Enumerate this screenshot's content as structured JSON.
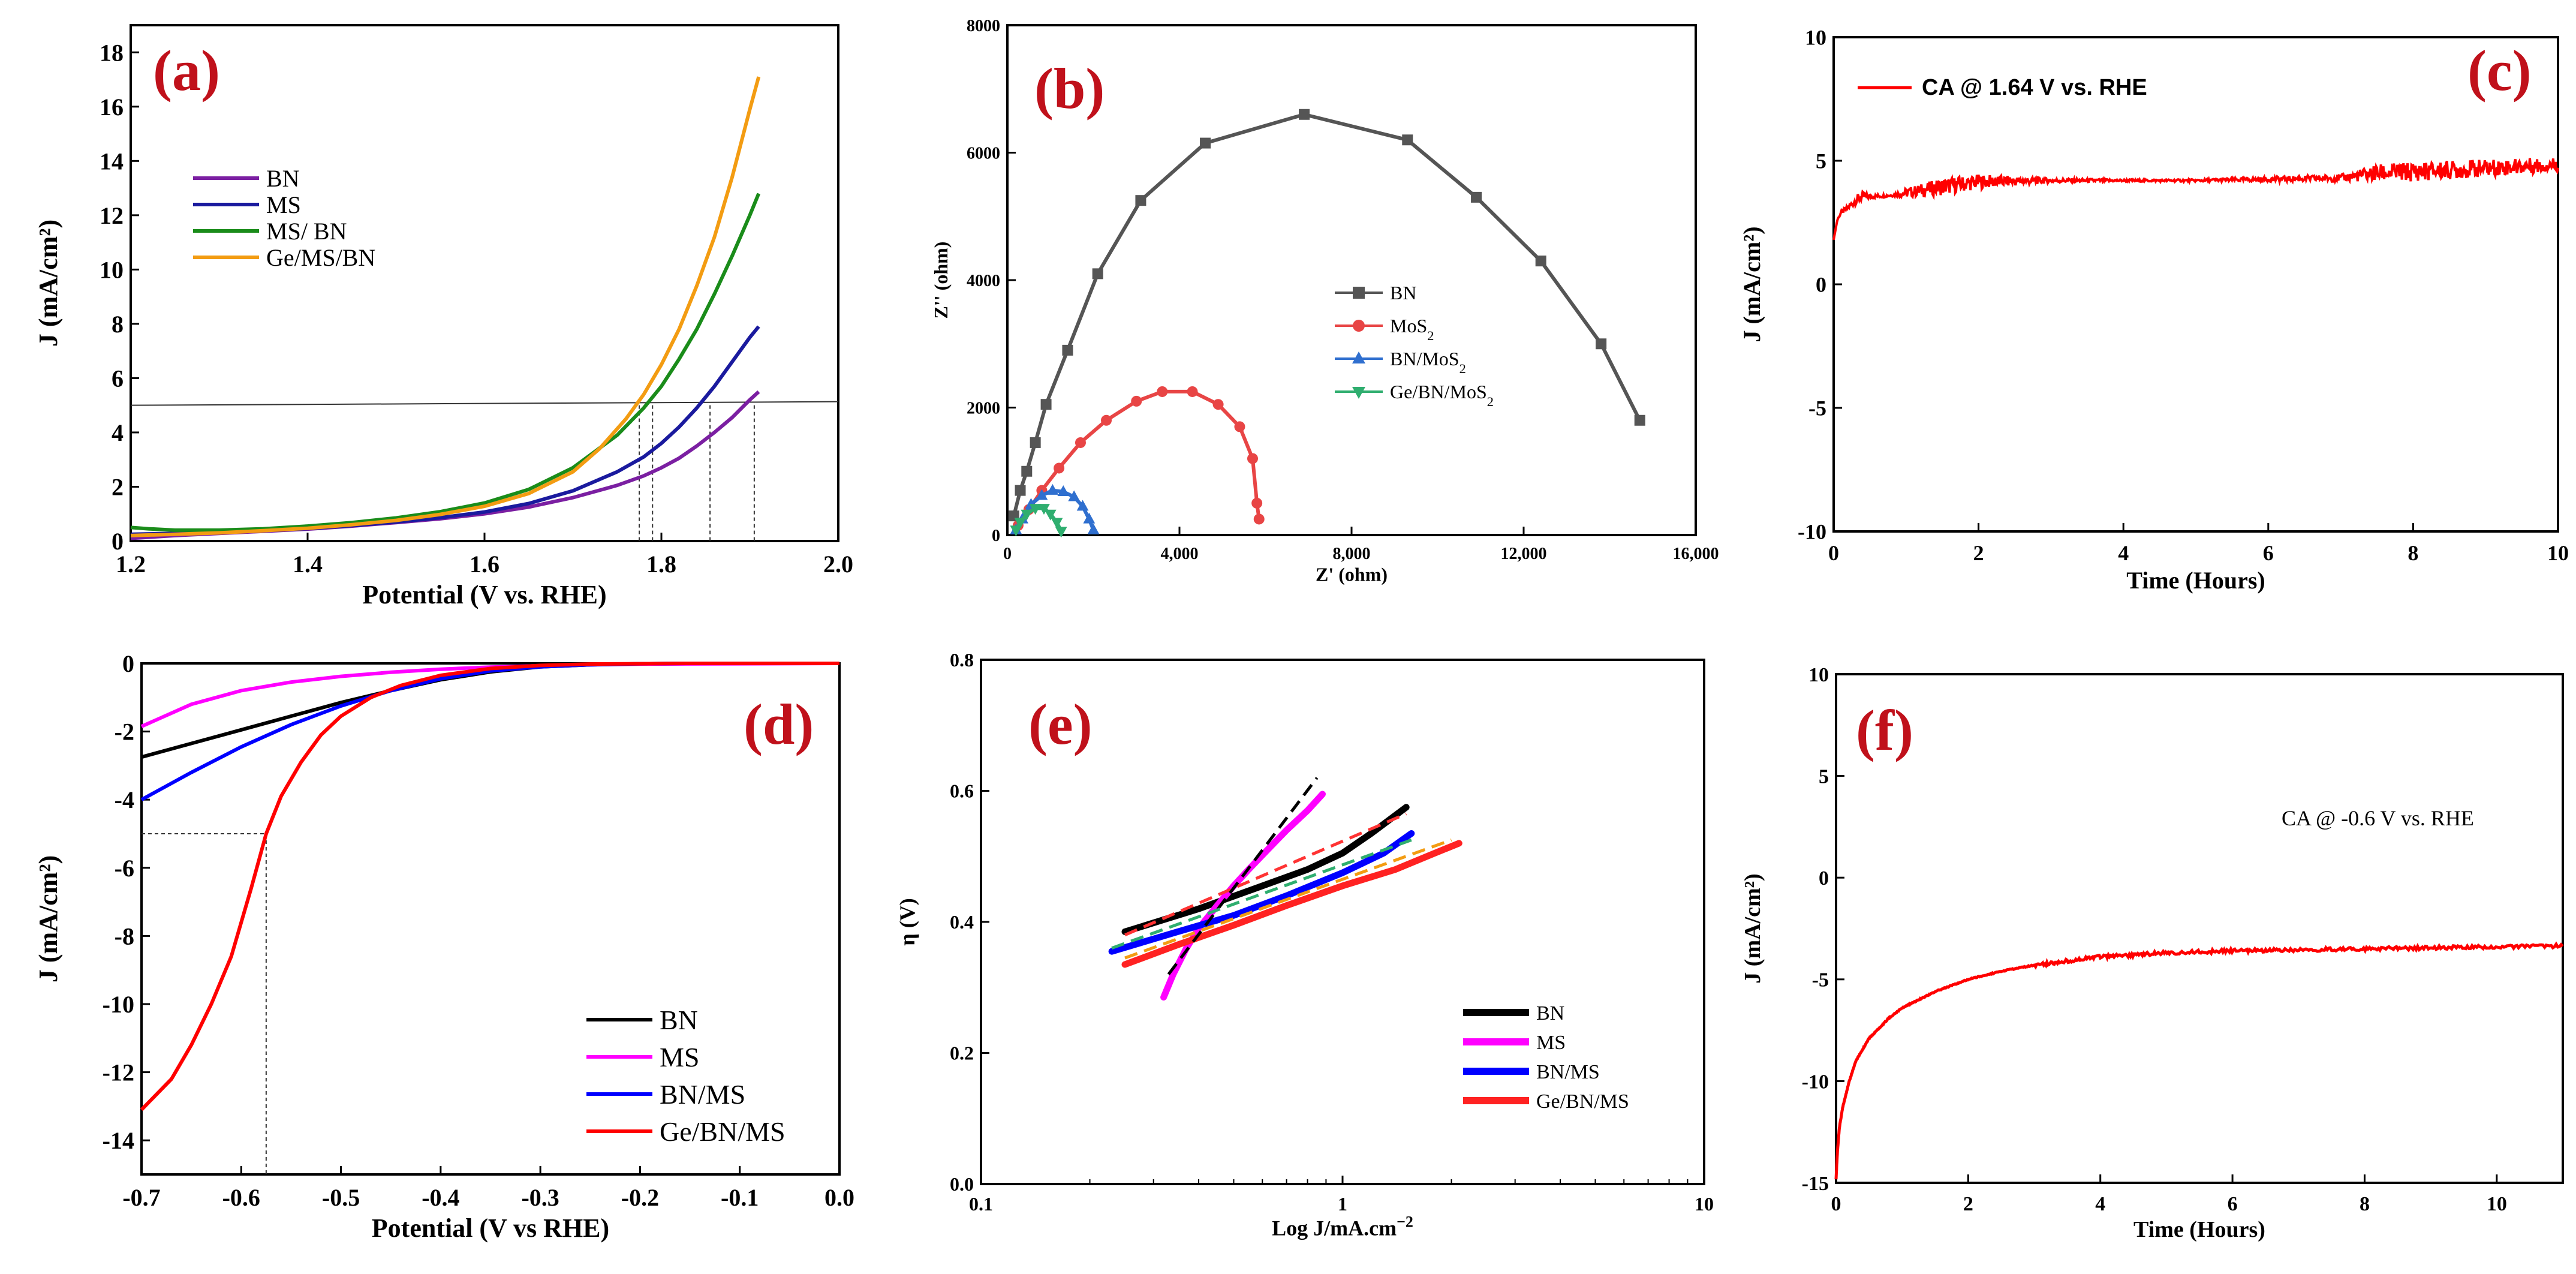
{
  "figure": {
    "panels": [
      "a",
      "b",
      "c",
      "d",
      "e",
      "f"
    ]
  },
  "chart_data": [
    {
      "id": "a",
      "type": "line",
      "panel_label": "(a)",
      "xlabel": "Potential (V vs. RHE)",
      "ylabel": "J (mA/cm²)",
      "xlim": [
        1.2,
        2.0
      ],
      "ylim": [
        0,
        19
      ],
      "xticks": [
        1.2,
        1.4,
        1.6,
        1.8,
        2.0
      ],
      "xtick_labels": [
        "1.2",
        "1.4",
        "1.6",
        "1.8",
        "2.0"
      ],
      "yticks": [
        0,
        2,
        4,
        6,
        8,
        10,
        12,
        14,
        16,
        18
      ],
      "ytick_labels": [
        "0",
        "2",
        "4",
        "6",
        "8",
        "10",
        "12",
        "14",
        "16",
        "18"
      ],
      "legend_position": "upper-left",
      "reference_line": {
        "y": 5
      },
      "drop_lines_x": [
        1.775,
        1.79,
        1.855,
        1.905
      ],
      "series": [
        {
          "name": "BN",
          "color": "#7b1fa2",
          "x": [
            1.2,
            1.25,
            1.3,
            1.35,
            1.4,
            1.45,
            1.5,
            1.55,
            1.6,
            1.65,
            1.7,
            1.75,
            1.78,
            1.8,
            1.82,
            1.84,
            1.86,
            1.88,
            1.9,
            1.91
          ],
          "y": [
            0.1,
            0.2,
            0.28,
            0.36,
            0.44,
            0.55,
            0.68,
            0.82,
            1.0,
            1.25,
            1.6,
            2.05,
            2.4,
            2.7,
            3.05,
            3.5,
            4.0,
            4.55,
            5.2,
            5.5
          ]
        },
        {
          "name": "MS",
          "color": "#1a1a9e",
          "x": [
            1.2,
            1.25,
            1.3,
            1.35,
            1.4,
            1.45,
            1.5,
            1.55,
            1.6,
            1.65,
            1.7,
            1.75,
            1.78,
            1.8,
            1.82,
            1.84,
            1.86,
            1.88,
            1.9,
            1.91
          ],
          "y": [
            0.25,
            0.28,
            0.32,
            0.38,
            0.46,
            0.57,
            0.7,
            0.86,
            1.07,
            1.38,
            1.85,
            2.55,
            3.1,
            3.6,
            4.2,
            4.9,
            5.7,
            6.6,
            7.5,
            7.9
          ]
        },
        {
          "name": "MS/ BN",
          "color": "#1a8c1a",
          "x": [
            1.2,
            1.22,
            1.25,
            1.3,
            1.35,
            1.4,
            1.45,
            1.5,
            1.55,
            1.6,
            1.65,
            1.7,
            1.75,
            1.78,
            1.8,
            1.82,
            1.84,
            1.86,
            1.88,
            1.9,
            1.91
          ],
          "y": [
            0.5,
            0.45,
            0.4,
            0.4,
            0.45,
            0.55,
            0.68,
            0.85,
            1.08,
            1.4,
            1.9,
            2.7,
            3.9,
            4.9,
            5.7,
            6.7,
            7.8,
            9.1,
            10.5,
            12.0,
            12.8
          ]
        },
        {
          "name": "Ge/MS/BN",
          "color": "#f39c12",
          "x": [
            1.2,
            1.25,
            1.3,
            1.35,
            1.4,
            1.45,
            1.5,
            1.55,
            1.6,
            1.65,
            1.7,
            1.73,
            1.76,
            1.78,
            1.8,
            1.82,
            1.84,
            1.86,
            1.88,
            1.9,
            1.91
          ],
          "y": [
            0.2,
            0.25,
            0.3,
            0.38,
            0.47,
            0.6,
            0.76,
            0.98,
            1.28,
            1.75,
            2.55,
            3.4,
            4.5,
            5.4,
            6.5,
            7.8,
            9.4,
            11.2,
            13.4,
            15.9,
            17.1
          ]
        }
      ]
    },
    {
      "id": "b",
      "type": "scatter",
      "panel_label": "(b)",
      "xlabel": "Z' (ohm)",
      "ylabel": "Z'' (ohm)",
      "xlim": [
        0,
        16000
      ],
      "ylim": [
        0,
        8000
      ],
      "xticks": [
        0,
        4000,
        8000,
        12000,
        16000
      ],
      "xtick_labels": [
        "0",
        "4,000",
        "8,000",
        "12,000",
        "16,000"
      ],
      "yticks": [
        0,
        2000,
        4000,
        6000,
        8000
      ],
      "ytick_labels": [
        "0",
        "2000",
        "4000",
        "6000",
        "8000"
      ],
      "legend_position": "center",
      "series": [
        {
          "name": "BN",
          "color": "#555555",
          "marker": "square",
          "x": [
            150,
            300,
            450,
            650,
            900,
            1400,
            2100,
            3100,
            4600,
            6900,
            9300,
            10900,
            12400,
            13800,
            14700
          ],
          "y": [
            300,
            700,
            1000,
            1450,
            2050,
            2900,
            4100,
            5250,
            6150,
            6600,
            6200,
            5300,
            4300,
            3000,
            1800
          ]
        },
        {
          "name": "MoS",
          "sub": "2",
          "color": "#e84545",
          "marker": "circle",
          "x": [
            250,
            500,
            800,
            1200,
            1700,
            2300,
            3000,
            3600,
            4300,
            4900,
            5400,
            5700,
            5800,
            5850
          ],
          "y": [
            150,
            400,
            700,
            1050,
            1450,
            1800,
            2100,
            2250,
            2250,
            2050,
            1700,
            1200,
            500,
            250
          ]
        },
        {
          "name": "BN/MoS",
          "sub": "2",
          "color": "#2f6fcf",
          "marker": "triangle",
          "x": [
            200,
            350,
            550,
            800,
            1050,
            1300,
            1550,
            1750,
            1900,
            2000
          ],
          "y": [
            80,
            250,
            480,
            620,
            700,
            680,
            600,
            450,
            250,
            80
          ]
        },
        {
          "name": "Ge/BN/MoS",
          "sub": "2",
          "color": "#2fae6f",
          "marker": "tri-down",
          "x": [
            200,
            300,
            450,
            650,
            850,
            1000,
            1150,
            1250
          ],
          "y": [
            80,
            200,
            330,
            420,
            420,
            330,
            200,
            60
          ]
        }
      ]
    },
    {
      "id": "c",
      "type": "line",
      "panel_label": "(c)",
      "xlabel": "Time (Hours)",
      "ylabel": "J (mA/cm²)",
      "xlim": [
        0,
        10
      ],
      "ylim": [
        -10,
        10
      ],
      "xticks": [
        0,
        2,
        4,
        6,
        8,
        10
      ],
      "xtick_labels": [
        "0",
        "2",
        "4",
        "6",
        "8",
        "10"
      ],
      "yticks": [
        -10,
        -5,
        0,
        5,
        10
      ],
      "ytick_labels": [
        "-10",
        "-5",
        "0",
        "5",
        "10"
      ],
      "legend_position": "top-left",
      "series": [
        {
          "name": "CA @ 1.64 V vs. RHE",
          "color": "#ff0000",
          "x": [
            0,
            0.05,
            0.1,
            0.2,
            0.3,
            0.4,
            0.5,
            0.8,
            1.0,
            1.5,
            2.0,
            3.0,
            4.0,
            5.0,
            6.0,
            7.0,
            7.5,
            8.0,
            9.0,
            10.0
          ],
          "y": [
            1.8,
            2.6,
            2.9,
            3.1,
            3.4,
            3.55,
            3.55,
            3.6,
            3.7,
            3.95,
            4.15,
            4.2,
            4.2,
            4.2,
            4.25,
            4.3,
            4.5,
            4.55,
            4.7,
            4.85
          ],
          "noise": [
            0,
            0,
            0.1,
            0.1,
            0.2,
            0.2,
            0.1,
            0.05,
            0.2,
            0.35,
            0.3,
            0.1,
            0.05,
            0.05,
            0.1,
            0.15,
            0.35,
            0.4,
            0.35,
            0.3
          ]
        }
      ]
    },
    {
      "id": "d",
      "type": "line",
      "panel_label": "(d)",
      "xlabel": "Potential (V vs RHE)",
      "ylabel": "J (mA/cm²)",
      "xlim": [
        -0.7,
        0.0
      ],
      "ylim": [
        -15,
        0
      ],
      "xticks": [
        -0.7,
        -0.6,
        -0.5,
        -0.4,
        -0.3,
        -0.2,
        -0.1,
        0.0
      ],
      "xtick_labels": [
        "-0.7",
        "-0.6",
        "-0.5",
        "-0.4",
        "-0.3",
        "-0.2",
        "-0.1",
        "0.0"
      ],
      "yticks": [
        0,
        -2,
        -4,
        -6,
        -8,
        -10,
        -12,
        -14
      ],
      "ytick_labels": [
        "0",
        "-2",
        "-4",
        "-6",
        "-8",
        "-10",
        "-12",
        "-14"
      ],
      "legend_position": "lower-right",
      "reference_point": {
        "x": -0.575,
        "y": -5
      },
      "series": [
        {
          "name": "BN",
          "color": "#000000",
          "x": [
            -0.7,
            -0.65,
            -0.6,
            -0.55,
            -0.5,
            -0.45,
            -0.4,
            -0.35,
            -0.3,
            -0.25,
            -0.2,
            -0.15,
            -0.1,
            0.0
          ],
          "y": [
            -2.75,
            -2.35,
            -1.95,
            -1.55,
            -1.15,
            -0.8,
            -0.48,
            -0.25,
            -0.1,
            -0.04,
            -0.01,
            0.0,
            0.0,
            0.0
          ]
        },
        {
          "name": "MS",
          "color": "#ff00ff",
          "x": [
            -0.7,
            -0.65,
            -0.6,
            -0.55,
            -0.5,
            -0.45,
            -0.4,
            -0.35,
            -0.3,
            -0.25,
            -0.2,
            -0.1,
            0.0
          ],
          "y": [
            -1.85,
            -1.2,
            -0.8,
            -0.55,
            -0.38,
            -0.26,
            -0.17,
            -0.11,
            -0.07,
            -0.04,
            -0.02,
            -0.01,
            0.0
          ]
        },
        {
          "name": "BN/MS",
          "color": "#0000ff",
          "x": [
            -0.7,
            -0.65,
            -0.6,
            -0.55,
            -0.5,
            -0.45,
            -0.4,
            -0.35,
            -0.3,
            -0.25,
            -0.2,
            -0.15,
            -0.1,
            0.0
          ],
          "y": [
            -4.0,
            -3.2,
            -2.45,
            -1.8,
            -1.25,
            -0.8,
            -0.45,
            -0.22,
            -0.1,
            -0.04,
            -0.01,
            0.0,
            0.0,
            0.0
          ]
        },
        {
          "name": "Ge/BN/MS",
          "color": "#ff0000",
          "x": [
            -0.7,
            -0.67,
            -0.65,
            -0.63,
            -0.61,
            -0.59,
            -0.575,
            -0.56,
            -0.54,
            -0.52,
            -0.5,
            -0.47,
            -0.44,
            -0.4,
            -0.35,
            -0.3,
            -0.25,
            -0.2,
            -0.15,
            -0.1,
            0.0
          ],
          "y": [
            -13.1,
            -12.2,
            -11.2,
            -10.0,
            -8.6,
            -6.6,
            -5.0,
            -3.9,
            -2.9,
            -2.1,
            -1.55,
            -1.0,
            -0.65,
            -0.35,
            -0.15,
            -0.06,
            -0.02,
            -0.01,
            0.0,
            0.0,
            0.0
          ]
        }
      ]
    },
    {
      "id": "e",
      "type": "line",
      "scale_x": "log",
      "panel_label": "(e)",
      "xlabel": "Log J/mA.cm",
      "xlabel_sup": "−2",
      "ylabel": "η (V)",
      "xlim": [
        0.1,
        10
      ],
      "ylim": [
        0.0,
        0.8
      ],
      "xticks": [
        0.1,
        1,
        10
      ],
      "xtick_labels": [
        "0.1",
        "1",
        "10"
      ],
      "yticks": [
        0.0,
        0.2,
        0.4,
        0.6,
        0.8
      ],
      "ytick_labels": [
        "0.0",
        "0.2",
        "0.4",
        "0.6",
        "0.8"
      ],
      "legend_position": "lower-right",
      "series": [
        {
          "name": "BN",
          "color": "#000000",
          "x": [
            0.25,
            0.4,
            0.6,
            0.8,
            1.0,
            1.2,
            1.5
          ],
          "y": [
            0.385,
            0.42,
            0.455,
            0.48,
            0.505,
            0.535,
            0.575
          ],
          "fit": {
            "x": [
              0.25,
              1.5
            ],
            "y": [
              0.38,
              0.565
            ],
            "color": "#ff3333"
          }
        },
        {
          "name": "MS",
          "color": "#ff00ff",
          "x": [
            0.32,
            0.34,
            0.37,
            0.4,
            0.45,
            0.5,
            0.55,
            0.62,
            0.7,
            0.8,
            0.88
          ],
          "y": [
            0.285,
            0.32,
            0.36,
            0.39,
            0.425,
            0.455,
            0.48,
            0.51,
            0.54,
            0.57,
            0.595
          ],
          "fit": {
            "x": [
              0.33,
              0.85
            ],
            "y": [
              0.32,
              0.62
            ],
            "color": "#000000"
          }
        },
        {
          "name": "BN/MS",
          "color": "#0000ff",
          "x": [
            0.23,
            0.35,
            0.5,
            0.7,
            1.0,
            1.3,
            1.55
          ],
          "y": [
            0.355,
            0.385,
            0.41,
            0.44,
            0.475,
            0.505,
            0.535
          ],
          "fit": {
            "x": [
              0.23,
              1.55
            ],
            "y": [
              0.36,
              0.525
            ],
            "color": "#2fae6f"
          }
        },
        {
          "name": "Ge/BN/MS",
          "color": "#ff2222",
          "x": [
            0.25,
            0.35,
            0.5,
            0.7,
            1.0,
            1.4,
            1.8,
            2.1
          ],
          "y": [
            0.335,
            0.365,
            0.395,
            0.425,
            0.455,
            0.48,
            0.505,
            0.52
          ],
          "fit": {
            "x": [
              0.25,
              2.0
            ],
            "y": [
              0.345,
              0.525
            ],
            "color": "#f39c12"
          }
        }
      ]
    },
    {
      "id": "f",
      "type": "line",
      "panel_label": "(f)",
      "xlabel": "Time (Hours)",
      "ylabel": "J (mA/cm²)",
      "xlim": [
        0,
        11
      ],
      "ylim": [
        -15,
        10
      ],
      "xticks": [
        0,
        2,
        4,
        6,
        8,
        10
      ],
      "xtick_labels": [
        "0",
        "2",
        "4",
        "6",
        "8",
        "10"
      ],
      "yticks": [
        -15,
        -10,
        -5,
        0,
        5,
        10
      ],
      "ytick_labels": [
        "-15",
        "-10",
        "-5",
        "0",
        "5",
        "10"
      ],
      "annotation": "CA @ -0.6 V vs. RHE",
      "series": [
        {
          "name": "CA @ -0.6 V vs. RHE",
          "color": "#ff0000",
          "x": [
            0,
            0.02,
            0.05,
            0.1,
            0.2,
            0.3,
            0.5,
            0.8,
            1.0,
            1.5,
            2.0,
            2.5,
            3.0,
            3.5,
            4.0,
            5.0,
            6.0,
            7.0,
            8.0,
            9.0,
            10.0,
            11.0
          ],
          "y": [
            -14.8,
            -13.5,
            -12.3,
            -11.3,
            -10.0,
            -9.0,
            -7.9,
            -6.9,
            -6.4,
            -5.6,
            -5.0,
            -4.6,
            -4.3,
            -4.1,
            -3.9,
            -3.7,
            -3.6,
            -3.55,
            -3.5,
            -3.45,
            -3.4,
            -3.35
          ]
        }
      ]
    }
  ]
}
